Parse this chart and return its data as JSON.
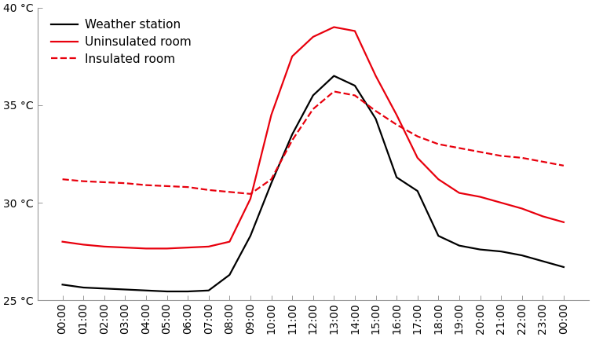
{
  "ylim": [
    25,
    40
  ],
  "yticks": [
    25,
    30,
    35,
    40
  ],
  "ytick_labels": [
    "25 °C",
    "30 °C",
    "35 °C",
    "40 °C"
  ],
  "xtick_labels": [
    "00:00",
    "01:00",
    "02:00",
    "03:00",
    "04:00",
    "05:00",
    "06:00",
    "07:00",
    "08:00",
    "09:00",
    "10:00",
    "11:00",
    "12:00",
    "13:00",
    "14:00",
    "15:00",
    "16:00",
    "17:00",
    "18:00",
    "19:00",
    "20:00",
    "21:00",
    "22:00",
    "23:00",
    "00:00"
  ],
  "weather_station": [
    25.8,
    25.65,
    25.6,
    25.55,
    25.5,
    25.45,
    25.45,
    25.5,
    26.3,
    28.3,
    31.0,
    33.5,
    35.5,
    36.5,
    36.0,
    34.3,
    31.3,
    30.6,
    28.3,
    27.8,
    27.6,
    27.5,
    27.3,
    27.0,
    26.7
  ],
  "uninsulated": [
    28.0,
    27.85,
    27.75,
    27.7,
    27.65,
    27.65,
    27.7,
    27.75,
    28.0,
    30.2,
    34.5,
    37.5,
    38.5,
    39.0,
    38.8,
    36.5,
    34.5,
    32.3,
    31.2,
    30.5,
    30.3,
    30.0,
    29.7,
    29.3,
    29.0
  ],
  "insulated": [
    31.2,
    31.1,
    31.05,
    31.0,
    30.9,
    30.85,
    30.8,
    30.65,
    30.55,
    30.45,
    31.2,
    33.2,
    34.8,
    35.7,
    35.5,
    34.7,
    34.0,
    33.4,
    33.0,
    32.8,
    32.6,
    32.4,
    32.3,
    32.1,
    31.9
  ],
  "weather_color": "#000000",
  "uninsulated_color": "#e8000d",
  "insulated_color": "#e8000d",
  "background_color": "#ffffff",
  "legend_labels": [
    "Weather station",
    "Uninsulated room",
    "Insulated room"
  ],
  "legend_fontsize": 11,
  "tick_fontsize": 10,
  "linewidth": 1.6
}
